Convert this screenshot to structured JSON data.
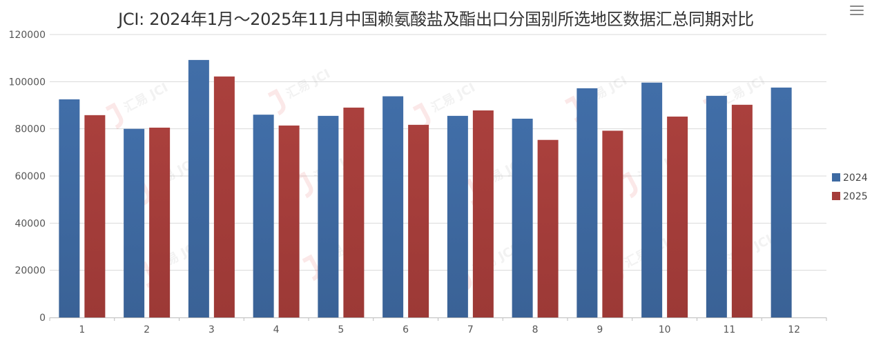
{
  "chart_data": {
    "type": "bar",
    "title": "JCI: 2024年1月～2025年11月中国赖氨酸盐及酯出口分国别所选地区数据汇总同期对比",
    "categories": [
      "1",
      "2",
      "3",
      "4",
      "5",
      "6",
      "7",
      "8",
      "9",
      "10",
      "11",
      "12"
    ],
    "series": [
      {
        "name": "2024",
        "color": "#3d6aa2",
        "values": [
          92500,
          80000,
          109200,
          86000,
          85500,
          93800,
          85500,
          84300,
          97200,
          99600,
          94000,
          97500
        ]
      },
      {
        "name": "2025",
        "color": "#a53c3a",
        "values": [
          85800,
          80500,
          102200,
          81400,
          89000,
          81700,
          87800,
          75300,
          79200,
          85200,
          90200,
          null
        ]
      }
    ],
    "ylim": [
      0,
      120000
    ],
    "yticks": [
      0,
      20000,
      40000,
      60000,
      80000,
      100000,
      120000
    ],
    "xlabel": "",
    "ylabel": "",
    "grid": true,
    "legend_position": "right"
  },
  "watermark": "汇易 JCI",
  "menu_icon": "hamburger-menu-icon"
}
